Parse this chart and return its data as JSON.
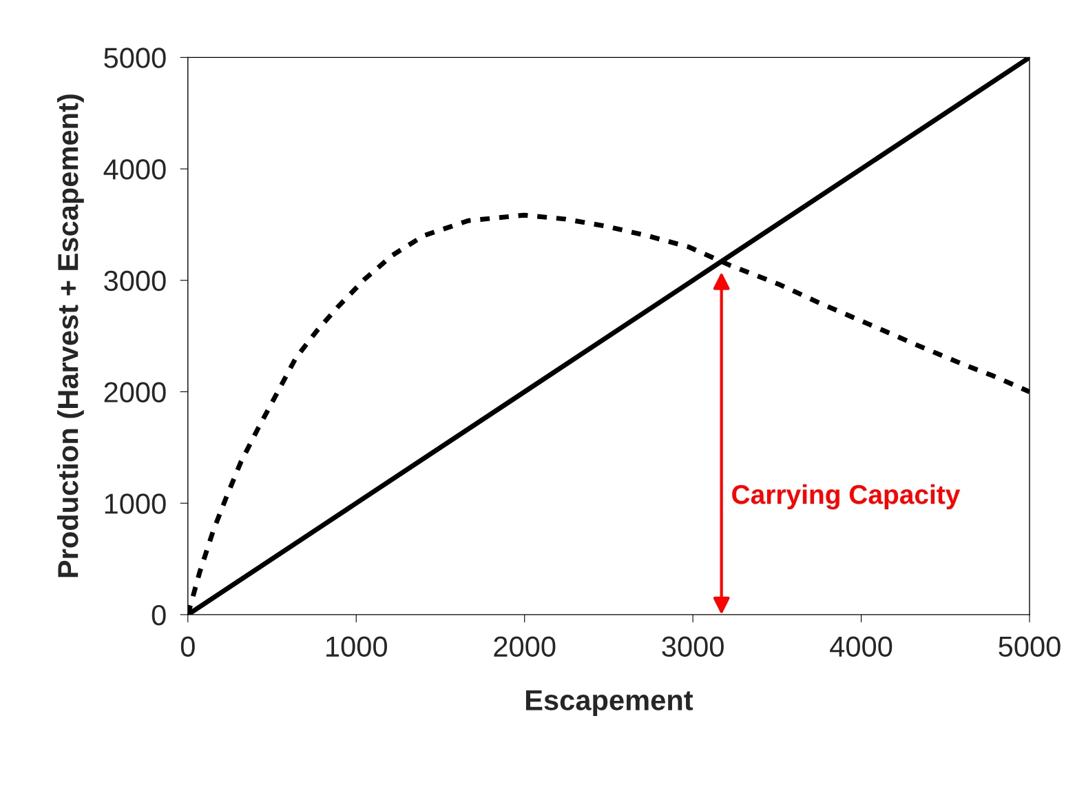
{
  "chart_data": {
    "type": "line",
    "xlabel": "Escapement",
    "ylabel": "Production (Harvest + Escapement)",
    "xlim": [
      0,
      5000
    ],
    "ylim": [
      0,
      5000
    ],
    "xticks": [
      0,
      1000,
      2000,
      3000,
      4000,
      5000
    ],
    "yticks": [
      0,
      1000,
      2000,
      3000,
      4000,
      5000
    ],
    "grid": false,
    "legend": false,
    "marker": "none",
    "series": [
      {
        "color": "#000000",
        "line_style": "solid",
        "x": [
          0,
          1000,
          2000,
          3000,
          4000,
          5000
        ],
        "values": [
          0,
          1000,
          2000,
          3000,
          4000,
          5000
        ]
      },
      {
        "color": "#000000",
        "line_style": "dashed",
        "x": [
          0,
          70,
          150,
          230,
          315,
          420,
          520,
          640,
          765,
          890,
          1050,
          1215,
          1400,
          1665,
          1995,
          2240,
          2485,
          2730,
          2975,
          3220,
          3510,
          3755,
          4040,
          4330,
          4615,
          4780,
          5000
        ],
        "values": [
          0,
          380,
          750,
          1060,
          1370,
          1680,
          1960,
          2300,
          2545,
          2760,
          3010,
          3225,
          3400,
          3535,
          3585,
          3550,
          3485,
          3400,
          3300,
          3135,
          2965,
          2795,
          2610,
          2420,
          2240,
          2145,
          2000
        ]
      }
    ],
    "annotations": [
      "Carrying Capacity"
    ]
  }
}
